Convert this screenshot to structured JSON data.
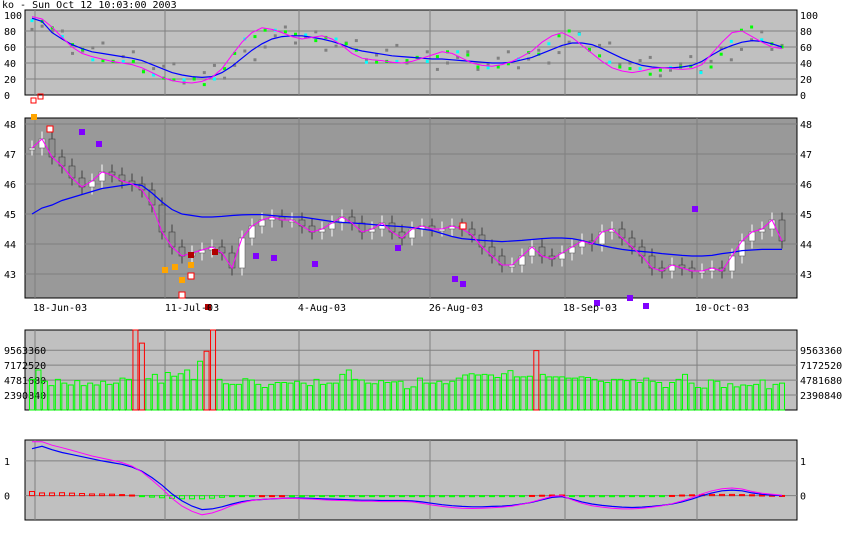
{
  "title": "ko - Sun Oct 12 10:03:00 2003",
  "colors": {
    "panel_light": "#c0c0c0",
    "panel_dark": "#999999",
    "grid": "#808080",
    "blue": "#0000ff",
    "magenta": "#ff00ff",
    "white": "#ffffff",
    "green_bar": "#00ff00",
    "red_bar": "#ff0000",
    "purple": "#8000ff",
    "orange": "#ffa500",
    "dark_red": "#b00000",
    "cyan": "#00ffff",
    "gray_dot": "#808080"
  },
  "chart_data": [
    {
      "type": "line",
      "title": "",
      "ylim": [
        0,
        100
      ],
      "y_ticks": [
        "100",
        "80",
        "60",
        "40",
        "20",
        "0"
      ],
      "series": [
        {
          "values": [
            96,
            92,
            78,
            70,
            63,
            58,
            54,
            52,
            50,
            48,
            46,
            43,
            38,
            33,
            28,
            25,
            23,
            22,
            23,
            28,
            36,
            46,
            56,
            64,
            70,
            73,
            74,
            74,
            72,
            70,
            67,
            63,
            58,
            55,
            53,
            51,
            49,
            48,
            47,
            46,
            45,
            45,
            44,
            43,
            42,
            41,
            40,
            40,
            41,
            44,
            47,
            52,
            57,
            62,
            65,
            65,
            63,
            58,
            52,
            46,
            41,
            37,
            35,
            34,
            34,
            35,
            37,
            42,
            50,
            57,
            62,
            66,
            68,
            67,
            64,
            60
          ]
        },
        {
          "values": [
            98,
            95,
            85,
            72,
            60,
            52,
            48,
            45,
            42,
            40,
            38,
            34,
            28,
            22,
            18,
            16,
            15,
            17,
            22,
            33,
            50,
            66,
            78,
            84,
            82,
            78,
            73,
            70,
            72,
            74,
            70,
            62,
            52,
            46,
            44,
            43,
            41,
            40,
            42,
            46,
            50,
            54,
            52,
            46,
            40,
            37,
            36,
            38,
            42,
            48,
            55,
            66,
            74,
            78,
            72,
            62,
            52,
            42,
            34,
            30,
            28,
            30,
            33,
            34,
            33,
            32,
            33,
            38,
            52,
            66,
            78,
            80,
            73,
            66,
            60,
            58
          ]
        }
      ]
    },
    {
      "type": "line",
      "title": "",
      "ylim": [
        42.2,
        48.2
      ],
      "y_ticks": [
        "48",
        "47",
        "46",
        "45",
        "44",
        "43"
      ],
      "x_ticks": [
        "18-Jun-03",
        "11-Jul-03",
        "4-Aug-03",
        "26-Aug-03",
        "18-Sep-03",
        "10-Oct-03"
      ],
      "series": [
        {
          "values": [
            45.0,
            45.2,
            45.3,
            45.45,
            45.55,
            45.65,
            45.75,
            45.85,
            45.9,
            45.95,
            46.0,
            45.95,
            45.7,
            45.4,
            45.15,
            45.0,
            44.95,
            44.9,
            44.9,
            44.92,
            44.95,
            44.97,
            44.98,
            44.98,
            44.95,
            44.92,
            44.9,
            44.9,
            44.85,
            44.8,
            44.75,
            44.72,
            44.7,
            44.68,
            44.65,
            44.62,
            44.6,
            44.58,
            44.55,
            44.5,
            44.45,
            44.35,
            44.25,
            44.18,
            44.15,
            44.12,
            44.1,
            44.08,
            44.1,
            44.12,
            44.15,
            44.18,
            44.2,
            44.2,
            44.18,
            44.12,
            44.02,
            43.95,
            43.88,
            43.82,
            43.78,
            43.75,
            43.72,
            43.68,
            43.65,
            43.62,
            43.6,
            43.6,
            43.62,
            43.68,
            43.72,
            43.78,
            43.8,
            43.82,
            43.82,
            43.82
          ]
        },
        {
          "values": [
            47.2,
            47.5,
            46.9,
            46.6,
            46.2,
            45.9,
            46.1,
            46.4,
            46.3,
            46.1,
            46.0,
            45.8,
            45.3,
            44.4,
            43.9,
            43.6,
            43.7,
            43.8,
            43.9,
            43.7,
            43.2,
            44.2,
            44.6,
            44.8,
            44.9,
            44.8,
            44.8,
            44.6,
            44.4,
            44.5,
            44.7,
            44.9,
            44.7,
            44.4,
            44.5,
            44.7,
            44.4,
            44.2,
            44.5,
            44.6,
            44.5,
            44.5,
            44.6,
            44.5,
            44.3,
            43.9,
            43.6,
            43.3,
            43.3,
            43.6,
            43.9,
            43.6,
            43.5,
            43.7,
            43.9,
            44.1,
            44.0,
            44.4,
            44.5,
            44.2,
            43.9,
            43.6,
            43.2,
            43.1,
            43.3,
            43.2,
            43.1,
            43.1,
            43.2,
            43.1,
            43.6,
            44.1,
            44.4,
            44.5,
            44.8,
            44.1
          ]
        }
      ]
    },
    {
      "type": "bar",
      "title": "",
      "ylim": [
        0,
        12800000
      ],
      "y_ticks": [
        "9563360",
        "7172520",
        "4781680",
        "2390840"
      ],
      "series": [
        {
          "values": [
            4.9,
            6.4,
            4.6,
            3.9,
            4.9,
            4.3,
            4.0,
            4.7,
            3.9,
            4.3,
            4.0,
            4.6,
            4.1,
            4.3,
            5.1,
            4.9,
            13.8,
            10.7,
            5.0,
            5.7,
            4.3,
            6.0,
            5.4,
            5.8,
            6.4,
            4.9,
            7.8,
            9.4,
            13.0,
            4.9,
            4.2,
            4.1,
            4.1,
            5.0,
            4.8,
            4.1,
            3.6,
            4.1,
            4.4,
            4.4,
            4.3,
            4.6,
            4.3,
            3.9,
            4.9,
            4.1,
            4.3,
            4.3,
            5.7,
            6.4,
            4.9,
            4.8,
            4.3,
            4.2,
            4.7,
            4.4,
            4.5,
            4.6,
            3.4,
            3.7,
            5.1,
            4.3,
            4.3,
            4.6,
            4.2,
            4.6,
            5.1,
            5.6,
            5.8,
            5.6,
            5.7,
            5.6,
            5.2,
            5.8,
            6.3,
            5.3,
            5.3,
            5.4,
            9.5,
            5.7,
            5.3,
            5.3,
            5.3,
            5.1,
            5.1,
            5.3,
            5.2,
            4.9,
            4.6,
            4.4,
            4.9,
            4.9,
            4.7,
            4.9,
            4.4,
            5.1,
            4.6,
            4.4,
            3.6,
            4.4,
            4.9,
            5.7,
            4.3,
            3.6,
            3.5,
            4.8,
            4.6,
            3.6,
            4.2,
            3.7,
            4.0,
            3.9,
            4.1,
            4.8,
            3.4,
            4.1,
            4.3
          ]
        }
      ]
    },
    {
      "type": "line",
      "title": "",
      "ylim": [
        -0.7,
        1.6
      ],
      "y_ticks": [
        "1",
        "0"
      ],
      "series": [
        {
          "values": [
            1.35,
            1.42,
            1.32,
            1.24,
            1.18,
            1.12,
            1.06,
            1.0,
            0.95,
            0.9,
            0.82,
            0.7,
            0.52,
            0.3,
            0.05,
            -0.15,
            -0.3,
            -0.4,
            -0.38,
            -0.32,
            -0.24,
            -0.17,
            -0.13,
            -0.11,
            -0.09,
            -0.08,
            -0.07,
            -0.07,
            -0.08,
            -0.09,
            -0.1,
            -0.11,
            -0.12,
            -0.13,
            -0.13,
            -0.14,
            -0.14,
            -0.14,
            -0.15,
            -0.18,
            -0.22,
            -0.26,
            -0.29,
            -0.31,
            -0.32,
            -0.32,
            -0.31,
            -0.3,
            -0.28,
            -0.24,
            -0.19,
            -0.12,
            -0.05,
            -0.03,
            -0.1,
            -0.18,
            -0.24,
            -0.28,
            -0.31,
            -0.33,
            -0.34,
            -0.33,
            -0.31,
            -0.28,
            -0.24,
            -0.18,
            -0.1,
            0.0,
            0.08,
            0.14,
            0.16,
            0.14,
            0.08,
            0.04,
            0.02,
            0.0
          ]
        },
        {
          "values": [
            1.55,
            1.55,
            1.45,
            1.38,
            1.3,
            1.22,
            1.14,
            1.08,
            1.02,
            0.95,
            0.85,
            0.68,
            0.45,
            0.2,
            -0.08,
            -0.3,
            -0.45,
            -0.55,
            -0.5,
            -0.4,
            -0.28,
            -0.2,
            -0.14,
            -0.11,
            -0.09,
            -0.08,
            -0.08,
            -0.09,
            -0.1,
            -0.12,
            -0.13,
            -0.14,
            -0.15,
            -0.16,
            -0.16,
            -0.17,
            -0.17,
            -0.17,
            -0.18,
            -0.22,
            -0.27,
            -0.31,
            -0.34,
            -0.36,
            -0.37,
            -0.36,
            -0.35,
            -0.33,
            -0.3,
            -0.25,
            -0.18,
            -0.1,
            -0.02,
            0.0,
            -0.12,
            -0.22,
            -0.29,
            -0.33,
            -0.36,
            -0.38,
            -0.38,
            -0.36,
            -0.33,
            -0.29,
            -0.23,
            -0.15,
            -0.06,
            0.05,
            0.14,
            0.2,
            0.22,
            0.19,
            0.12,
            0.07,
            0.04,
            0.01
          ]
        }
      ]
    }
  ]
}
